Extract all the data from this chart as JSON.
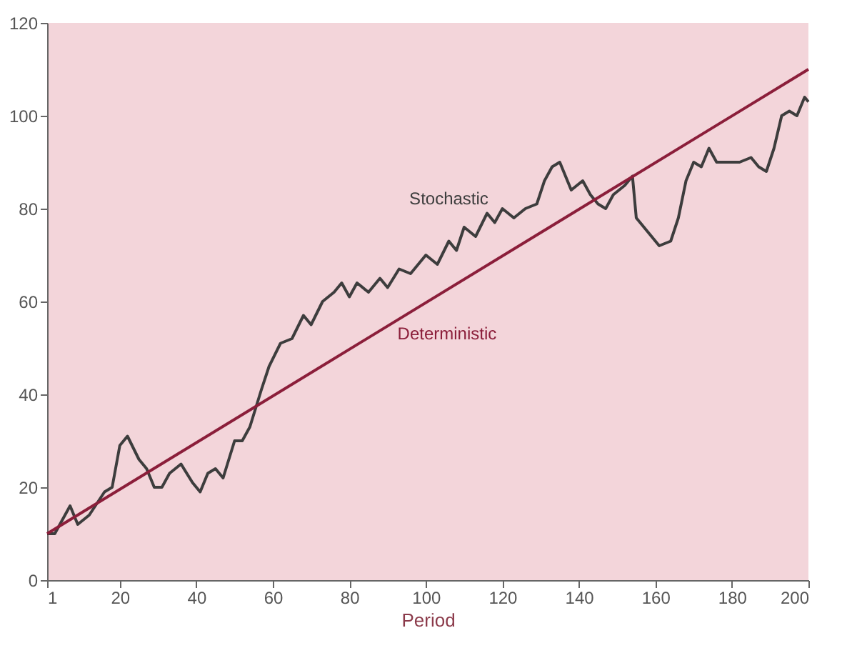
{
  "chart_data": {
    "type": "line",
    "xlabel": "Period",
    "legend": false,
    "grid": false,
    "xlim": [
      1,
      200
    ],
    "ylim": [
      0,
      120
    ],
    "xticks": [
      1,
      20,
      40,
      60,
      80,
      100,
      120,
      140,
      160,
      180,
      200
    ],
    "yticks": [
      0,
      20,
      40,
      60,
      80,
      100,
      120
    ],
    "series": [
      {
        "name": "Stochastic",
        "color": "#3d3d3d",
        "x": [
          1,
          3,
          7,
          9,
          12,
          16,
          18,
          20,
          22,
          25,
          27,
          29,
          31,
          33,
          36,
          39,
          41,
          43,
          45,
          47,
          50,
          52,
          54,
          57,
          59,
          62,
          65,
          68,
          70,
          73,
          76,
          78,
          80,
          82,
          85,
          88,
          90,
          93,
          96,
          100,
          103,
          106,
          108,
          110,
          113,
          116,
          118,
          120,
          123,
          126,
          129,
          131,
          133,
          135,
          138,
          141,
          143,
          145,
          147,
          149,
          152,
          154,
          155,
          158,
          161,
          164,
          166,
          168,
          170,
          172,
          174,
          176,
          179,
          182,
          185,
          187,
          189,
          191,
          193,
          195,
          197,
          199,
          200
        ],
        "values": [
          10,
          10,
          16,
          12,
          14,
          19,
          20,
          29,
          31,
          26,
          24,
          20,
          20,
          23,
          25,
          21,
          19,
          23,
          24,
          22,
          30,
          30,
          33,
          41,
          46,
          51,
          52,
          57,
          55,
          60,
          62,
          64,
          61,
          64,
          62,
          65,
          63,
          67,
          66,
          70,
          68,
          73,
          71,
          76,
          74,
          79,
          77,
          80,
          78,
          80,
          81,
          86,
          89,
          90,
          84,
          86,
          83,
          81,
          80,
          83,
          85,
          87,
          78,
          75,
          72,
          73,
          78,
          86,
          90,
          89,
          93,
          90,
          90,
          90,
          91,
          89,
          88,
          93,
          100,
          101,
          100,
          104,
          103
        ]
      },
      {
        "name": "Deterministic",
        "color": "#8b1e3a",
        "x": [
          1,
          200
        ],
        "values": [
          10,
          110
        ]
      }
    ]
  }
}
